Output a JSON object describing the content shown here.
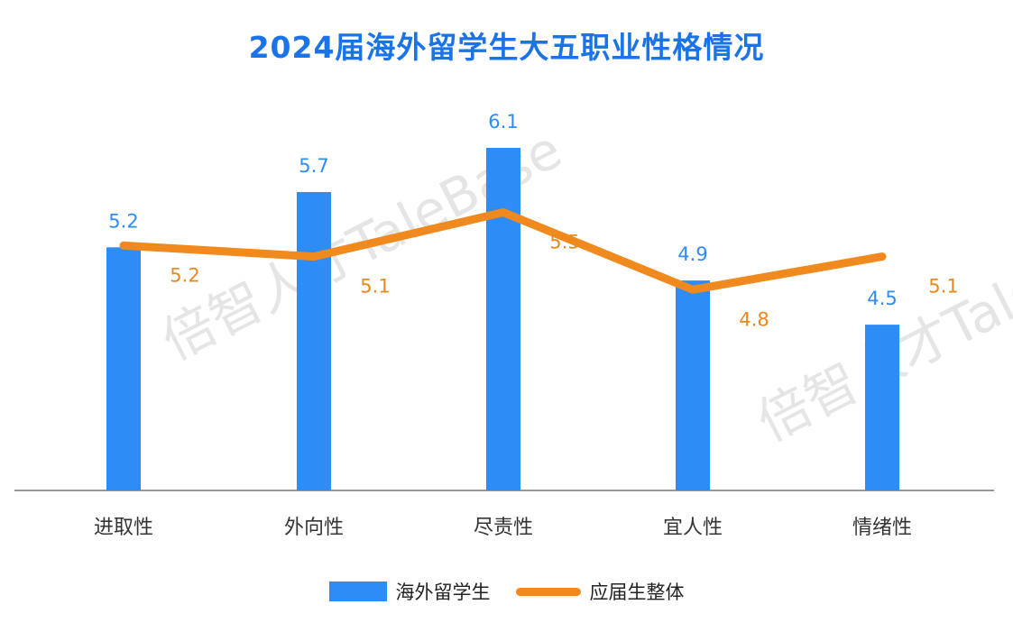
{
  "title": "2024届海外留学生大五职业性格情况",
  "colors": {
    "bar": "#2e8cf7",
    "line": "#f0891e",
    "title": "#1a73e8",
    "axis": "#9a9a9a"
  },
  "watermark": "倍智人才TaleBase",
  "chart_data": {
    "type": "bar",
    "categories": [
      "进取性",
      "外向性",
      "尽责性",
      "宜人性",
      "情绪性"
    ],
    "series": [
      {
        "name": "海外留学生",
        "type": "bar",
        "values": [
          5.2,
          5.7,
          6.1,
          4.9,
          4.5
        ],
        "color": "#2e8cf7"
      },
      {
        "name": "应届生整体",
        "type": "line",
        "values": [
          5.2,
          5.1,
          5.5,
          4.8,
          5.1
        ],
        "color": "#f0891e"
      }
    ],
    "ylim": [
      3.0,
      6.3
    ],
    "grid": false,
    "legend_position": "bottom"
  }
}
